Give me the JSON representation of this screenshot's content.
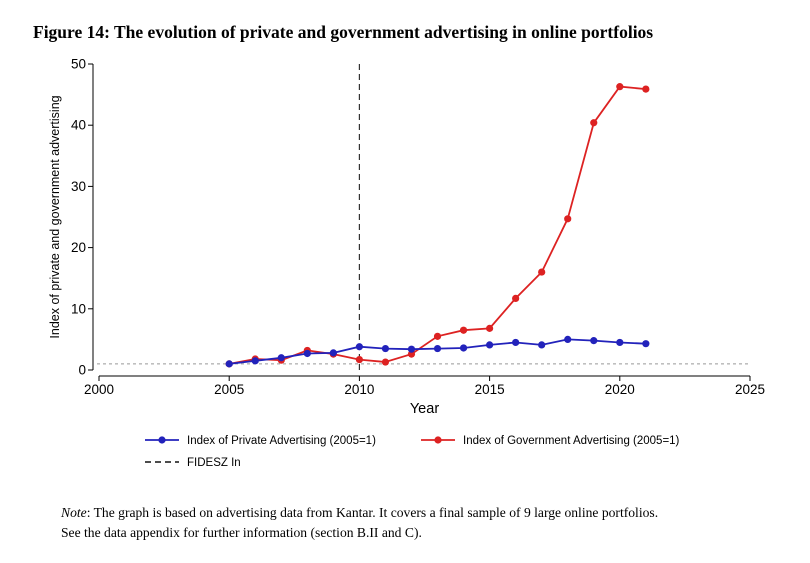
{
  "figure": {
    "title": "Figure 14: The evolution of private and government advertising in online portfolios",
    "note_label": "Note",
    "note_text": ": The graph is based on advertising data from Kantar. It covers a final sample of 9 large online portfolios.",
    "note_text2": "See the data appendix for further information  (section B.II and C)."
  },
  "chart_data": {
    "type": "line",
    "xlabel": "Year",
    "ylabel": "Index of private and government advertising",
    "xlim": [
      2000,
      2025
    ],
    "ylim": [
      0,
      50
    ],
    "xticks": [
      2000,
      2005,
      2010,
      2015,
      2020,
      2025
    ],
    "yticks": [
      0,
      10,
      20,
      30,
      40,
      50
    ],
    "x": [
      2005,
      2006,
      2007,
      2008,
      2009,
      2010,
      2011,
      2012,
      2013,
      2014,
      2015,
      2016,
      2017,
      2018,
      2019,
      2020,
      2021
    ],
    "series": [
      {
        "name": "Index of Private Advertising (2005=1)",
        "color": "#2222bb",
        "values": [
          1.0,
          1.5,
          2.0,
          2.7,
          2.8,
          3.8,
          3.5,
          3.4,
          3.5,
          3.6,
          4.1,
          4.5,
          4.1,
          5.0,
          4.8,
          4.5,
          4.3
        ]
      },
      {
        "name": "Index of Government Advertising (2005=1)",
        "color": "#dd2222",
        "values": [
          1.0,
          1.8,
          1.6,
          3.2,
          2.6,
          1.7,
          1.3,
          2.6,
          5.5,
          6.5,
          6.8,
          11.7,
          16.0,
          24.7,
          40.4,
          46.3,
          45.9
        ]
      }
    ],
    "vline": {
      "name": "FIDESZ In",
      "x": 2010,
      "style": "dashed",
      "color": "#333333"
    },
    "hline": {
      "y": 1,
      "style": "dotted",
      "color": "#999999"
    },
    "grid": false,
    "legend": "bottom"
  }
}
